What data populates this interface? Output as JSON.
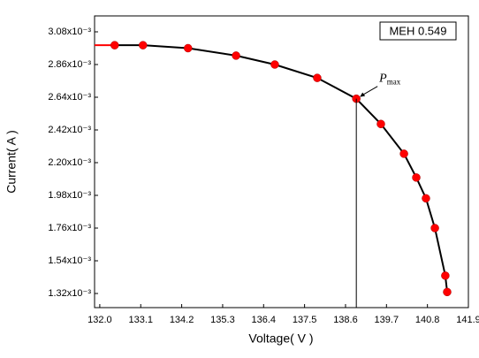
{
  "chart_data": {
    "type": "line",
    "x_label": "Voltage( V )",
    "y_label": "Current( A )",
    "xlim": [
      131.86,
      141.9
    ],
    "ylim": [
      0.001225,
      0.003187
    ],
    "xticks": [
      {
        "value": 132.0,
        "label": "132.0"
      },
      133.1,
      134.2,
      135.3,
      136.4,
      137.5,
      138.6,
      139.7,
      140.8,
      141.9
    ],
    "yticks": [
      {
        "value": 0.00132,
        "label": "1.32x10⁻³"
      },
      {
        "value": 0.00154,
        "label": "1.54x10⁻³"
      },
      {
        "value": 0.00176,
        "label": "1.76x10⁻³"
      },
      {
        "value": 0.00198,
        "label": "1.98x10⁻³"
      },
      {
        "value": 0.0022,
        "label": "2.20x10⁻³"
      },
      {
        "value": 0.00242,
        "label": "2.42x10⁻³"
      },
      {
        "value": 0.00264,
        "label": "2.64x10⁻³"
      },
      {
        "value": 0.00286,
        "label": "2.86x10⁻³"
      },
      {
        "value": 0.00308,
        "label": "3.08x10⁻³"
      }
    ],
    "x": [
      132.4,
      133.16,
      134.37,
      135.66,
      136.7,
      137.84,
      138.89,
      139.55,
      140.17,
      140.5,
      140.76,
      141.0,
      141.28,
      141.33
    ],
    "series": [
      {
        "name": "MEH 0.549",
        "color": "#ff0000",
        "line_color": "#000000",
        "values": [
          0.00299,
          0.00299,
          0.00297,
          0.00292,
          0.00286,
          0.00277,
          0.00263,
          0.00246,
          0.00226,
          0.0021,
          0.00196,
          0.00176,
          0.00144,
          0.00133
        ]
      }
    ],
    "annotation": {
      "text": "P",
      "subscript": "max",
      "index": 6
    }
  }
}
